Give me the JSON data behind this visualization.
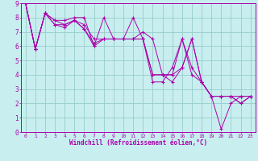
{
  "title": "",
  "xlabel": "Windchill (Refroidissement éolien,°C)",
  "ylabel": "",
  "bg_color": "#c8eef0",
  "line_color": "#aa00aa",
  "grid_color": "#99cccc",
  "xlim": [
    -0.5,
    23.5
  ],
  "ylim": [
    0,
    9
  ],
  "xticks": [
    0,
    1,
    2,
    3,
    4,
    5,
    6,
    7,
    8,
    9,
    10,
    11,
    12,
    13,
    14,
    15,
    16,
    17,
    18,
    19,
    20,
    21,
    22,
    23
  ],
  "yticks": [
    0,
    1,
    2,
    3,
    4,
    5,
    6,
    7,
    8,
    9
  ],
  "series": [
    [
      9.0,
      5.8,
      8.3,
      7.8,
      7.5,
      7.8,
      7.5,
      6.5,
      6.5,
      6.5,
      6.5,
      6.5,
      6.5,
      4.0,
      4.0,
      4.0,
      4.5,
      6.5,
      3.5,
      2.5,
      2.5,
      2.5,
      2.0,
      2.5
    ],
    [
      9.0,
      5.8,
      8.3,
      7.5,
      7.3,
      7.8,
      7.2,
      6.0,
      8.0,
      6.5,
      6.5,
      6.5,
      7.0,
      6.5,
      4.0,
      4.0,
      6.5,
      4.0,
      3.5,
      2.5,
      0.2,
      2.0,
      2.5,
      2.5
    ],
    [
      9.0,
      5.8,
      8.3,
      7.5,
      7.5,
      7.8,
      7.2,
      6.2,
      6.5,
      6.5,
      6.5,
      6.5,
      6.5,
      4.0,
      4.0,
      3.5,
      4.5,
      6.5,
      3.5,
      2.5,
      2.5,
      2.5,
      2.5,
      2.5
    ],
    [
      9.0,
      5.8,
      8.3,
      7.8,
      7.8,
      8.0,
      8.0,
      6.0,
      6.5,
      6.5,
      6.5,
      8.0,
      6.5,
      3.5,
      3.5,
      4.5,
      6.5,
      4.5,
      3.5,
      2.5,
      2.5,
      2.5,
      2.0,
      2.5
    ]
  ]
}
